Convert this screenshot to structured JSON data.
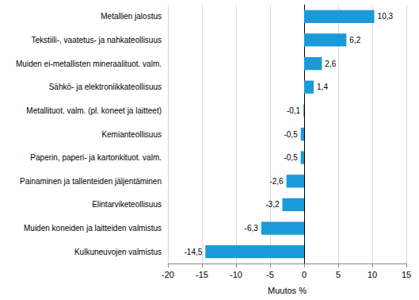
{
  "chart_data": {
    "type": "bar",
    "orientation": "horizontal",
    "xlabel": "Muutos %",
    "categories": [
      "Metallien jalostus",
      "Tekstiili-, vaatetus- ja nahkateollisuus",
      "Muiden ei-metallisten mineraalituot. valm.",
      "Sähkö- ja elektroniikkateollisuus",
      "Metallituot. valm. (pl. koneet ja laitteet)",
      "Kemianteollisuus",
      "Paperin, paperi- ja kartonkituot. valm.",
      "Painaminen ja tallenteiden jäljentäminen",
      "Elintarviketeollisuus",
      "Muiden koneiden ja laitteiden valmistus",
      "Kulkuneuvojen valmistus"
    ],
    "values": [
      10.3,
      6.2,
      2.6,
      1.4,
      -0.1,
      -0.5,
      -0.5,
      -2.6,
      -3.2,
      -6.3,
      -14.5
    ],
    "value_labels": [
      "10,3",
      "6,2",
      "2,6",
      "1,4",
      "-0,1",
      "-0,5",
      "-0,5",
      "-2,6",
      "-3,2",
      "-6,3",
      "-14,5"
    ],
    "data_labels": true,
    "color": "#1a9ad8",
    "xlim": [
      -20,
      15
    ],
    "xticks": [
      -20,
      -15,
      -10,
      -5,
      0,
      5,
      10,
      15
    ],
    "grid": true
  }
}
